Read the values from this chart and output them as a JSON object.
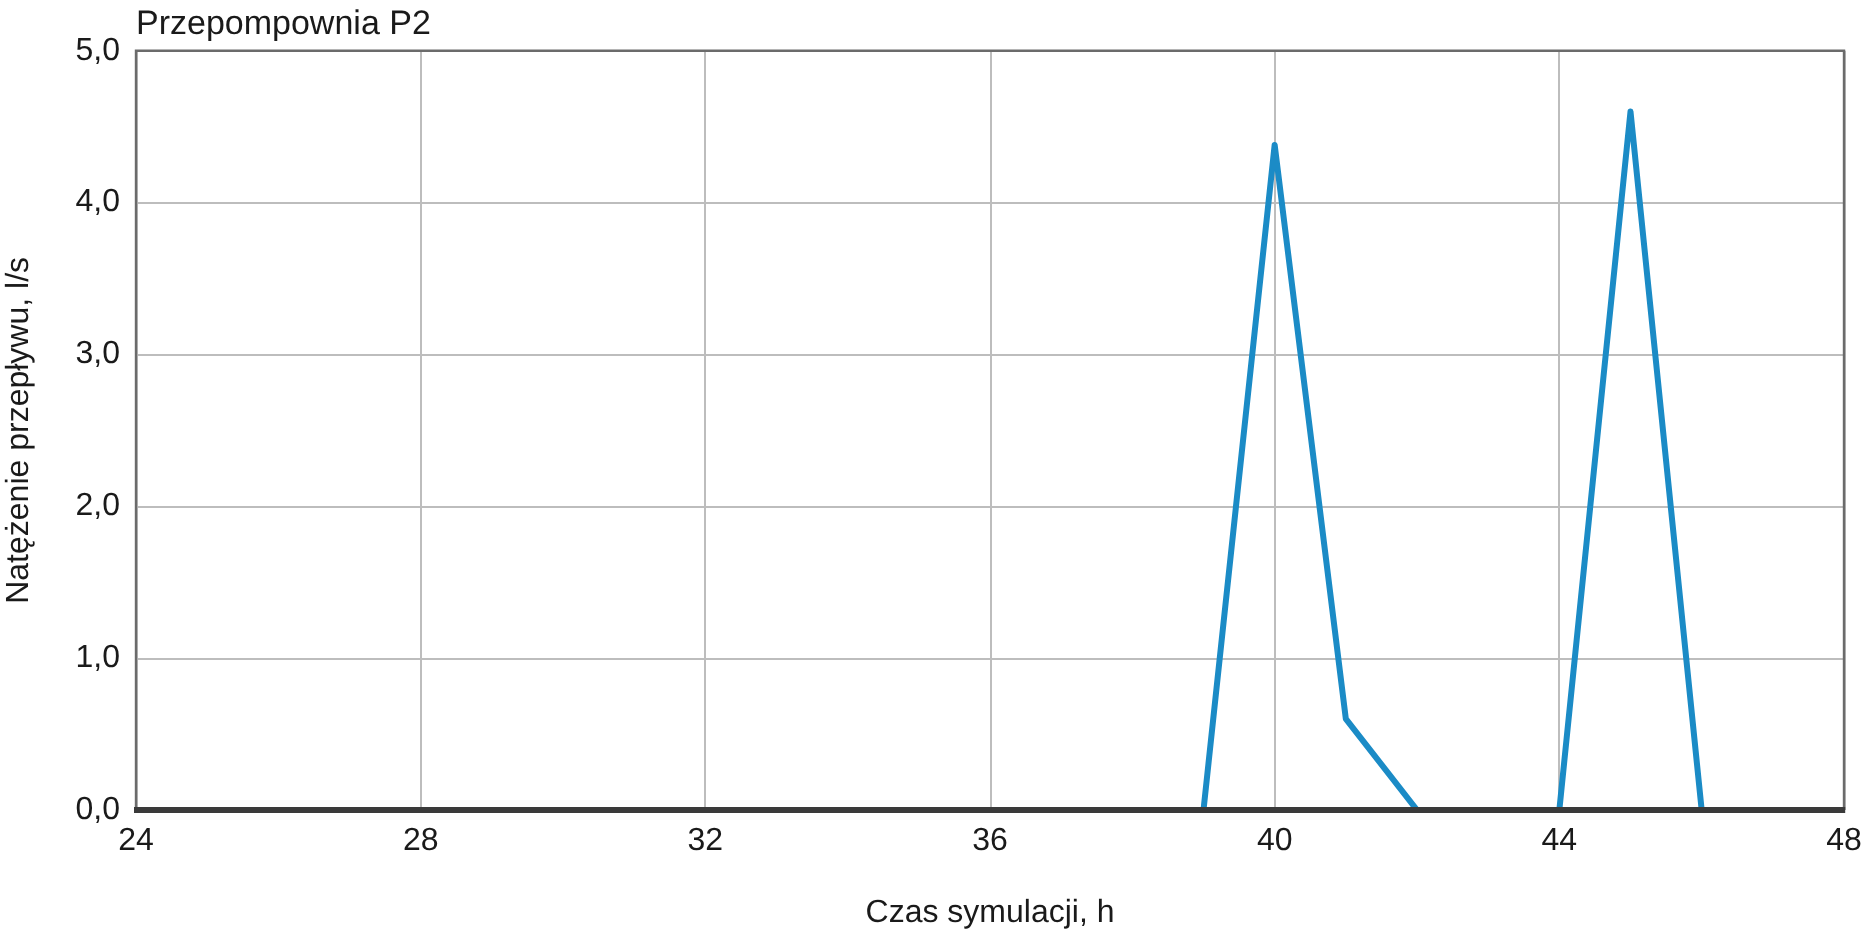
{
  "chart_data": {
    "type": "line",
    "title": "Przepompownia P2",
    "xlabel": "Czas symulacji, h",
    "ylabel": "Natężenie przepływu, l/s",
    "x": [
      39,
      40,
      41,
      42,
      44,
      45,
      46
    ],
    "values": [
      0,
      4.38,
      0.6,
      0,
      0,
      4.6,
      0
    ],
    "color": "#1b8bc6",
    "xlim": [
      24,
      48
    ],
    "xticks": [
      24,
      28,
      32,
      36,
      40,
      44,
      48
    ],
    "ylim": [
      0,
      5
    ],
    "yticks": [
      {
        "value": 0,
        "label": "0,0"
      },
      {
        "value": 1,
        "label": "1,0"
      },
      {
        "value": 2,
        "label": "2,0"
      },
      {
        "value": 3,
        "label": "3,0"
      },
      {
        "value": 4,
        "label": "4,0"
      },
      {
        "value": 5,
        "label": "5,0"
      }
    ],
    "grid": true,
    "legend": false
  }
}
